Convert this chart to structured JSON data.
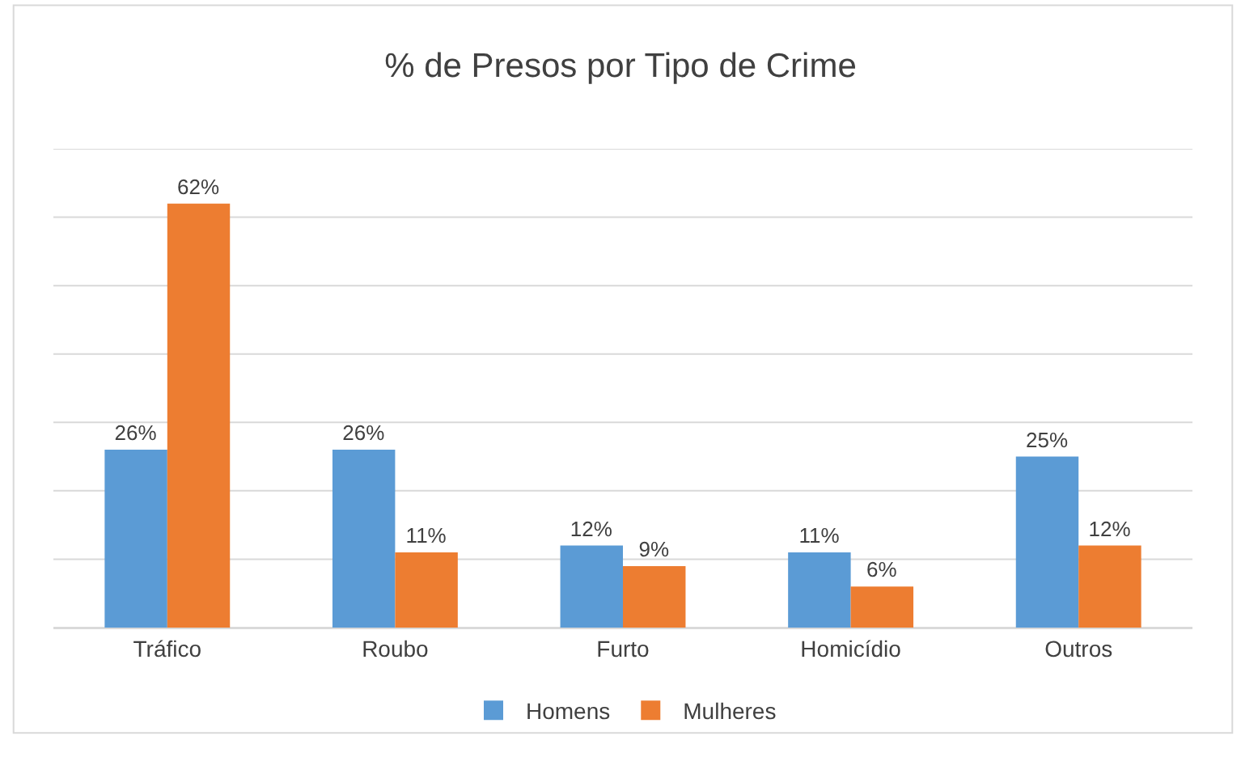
{
  "chart_data": {
    "type": "bar",
    "title": "% de Presos por Tipo de Crime",
    "categories": [
      "Tráfico",
      "Roubo",
      "Furto",
      "Homicídio",
      "Outros"
    ],
    "series": [
      {
        "name": "Homens",
        "color": "#5b9bd5",
        "values": [
          26,
          26,
          12,
          11,
          25
        ],
        "value_labels": [
          "26%",
          "26%",
          "12%",
          "11%",
          "25%"
        ]
      },
      {
        "name": "Mulheres",
        "color": "#ed7d31",
        "values": [
          62,
          11,
          9,
          6,
          12
        ],
        "value_labels": [
          "62%",
          "11%",
          "9%",
          "6%",
          "12%"
        ]
      }
    ],
    "ylim": [
      0,
      70
    ],
    "yticks": [
      {
        "value": 0,
        "label": null
      },
      {
        "value": 10,
        "label": null
      },
      {
        "value": 20,
        "label": null
      },
      {
        "value": 30,
        "label": null
      },
      {
        "value": 40,
        "label": null
      },
      {
        "value": 50,
        "label": null
      },
      {
        "value": 60,
        "label": null
      },
      {
        "value": 70,
        "label": null
      }
    ],
    "grid": "y",
    "legend": "bottom",
    "tick_labels": "x"
  }
}
